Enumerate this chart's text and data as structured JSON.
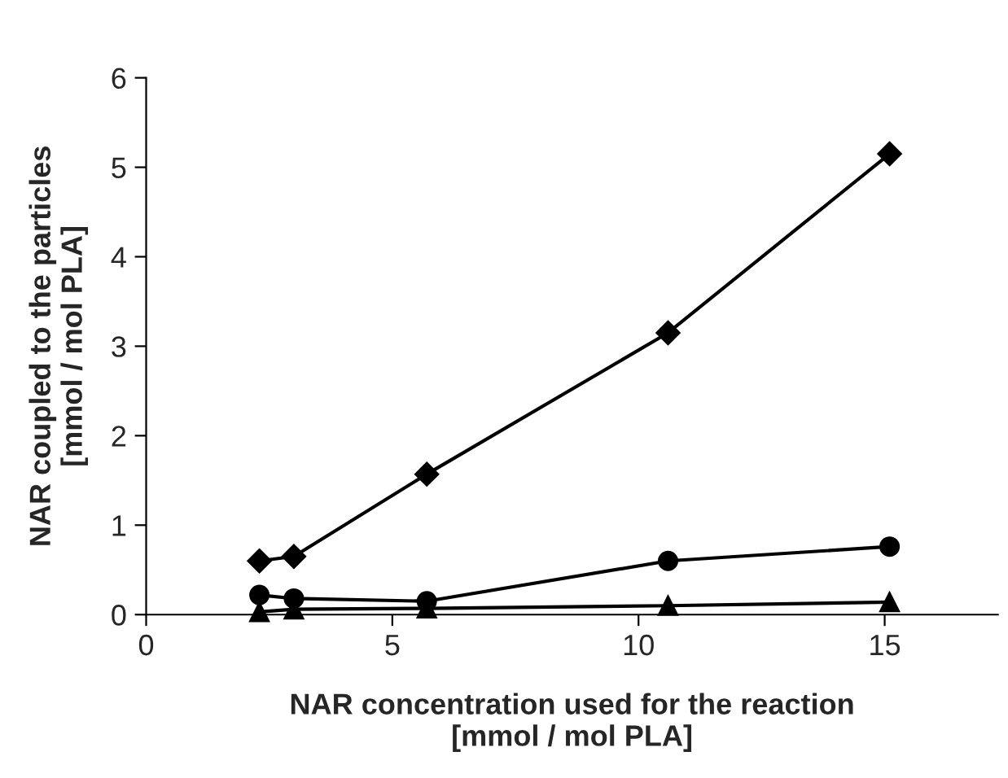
{
  "chart_data": {
    "type": "line",
    "xlabel": "NAR concentration used for the reaction\n[mmol / mol PLA]",
    "ylabel": "NAR coupled to the particles\n[mmol / mol PLA]",
    "x": [
      2.3,
      3.0,
      5.7,
      10.6,
      15.1
    ],
    "series": [
      {
        "color": "#000000",
        "values": [
          0.6,
          0.65,
          1.57,
          3.15,
          5.15
        ],
        "marker": "diamond"
      },
      {
        "color": "#000000",
        "values": [
          0.22,
          0.18,
          0.15,
          0.6,
          0.76
        ],
        "marker": "circle"
      },
      {
        "color": "#000000",
        "values": [
          0.03,
          0.06,
          0.07,
          0.1,
          0.14
        ],
        "marker": "triangle"
      }
    ],
    "xlim": [
      0,
      17.3
    ],
    "xticks": [
      0,
      5,
      10,
      15
    ],
    "ylim": [
      0,
      6
    ],
    "yticks": [
      0,
      1,
      2,
      3,
      4,
      5,
      6
    ],
    "grid": false,
    "legend": false,
    "line_style": "solid"
  }
}
